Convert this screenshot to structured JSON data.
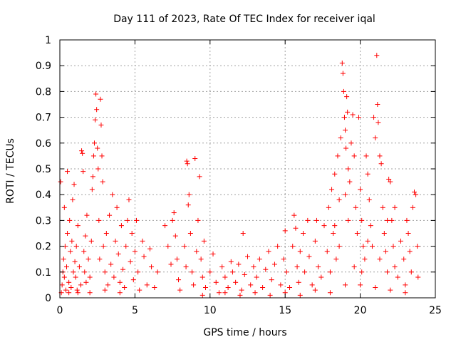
{
  "chart_data": {
    "type": "scatter",
    "title": "Day 111 of 2023, Rate Of TEC Index for receiver iqal",
    "xlabel": "GPS time / hours",
    "ylabel": "ROTI / TECUs",
    "xlim": [
      0,
      25
    ],
    "ylim": [
      0,
      1
    ],
    "xticks": [
      "0",
      "5",
      "10",
      "15",
      "20",
      "25"
    ],
    "yticks": [
      "0",
      "0.1",
      "0.2",
      "0.3",
      "0.4",
      "0.5",
      "0.6",
      "0.7",
      "0.8",
      "0.9",
      "1"
    ],
    "grid": true,
    "marker": "plus",
    "color": "#ff0000",
    "series": [
      {
        "points": [
          [
            0.05,
            0.45
          ],
          [
            0.1,
            0.02
          ],
          [
            0.15,
            0.05
          ],
          [
            0.2,
            0.1
          ],
          [
            0.25,
            0.15
          ],
          [
            0.3,
            0.08
          ],
          [
            0.35,
            0.2
          ],
          [
            0.4,
            0.03
          ],
          [
            0.45,
            0.12
          ],
          [
            0.5,
            0.25
          ],
          [
            0.5,
            0.49
          ],
          [
            0.6,
            0.06
          ],
          [
            0.65,
            0.3
          ],
          [
            0.7,
            0.18
          ],
          [
            0.75,
            0.04
          ],
          [
            0.8,
            0.22
          ],
          [
            0.85,
            0.38
          ],
          [
            0.9,
            0.1
          ],
          [
            0.95,
            0.44
          ],
          [
            1.0,
            0.14
          ],
          [
            1.05,
            0.08
          ],
          [
            1.1,
            0.2
          ],
          [
            1.15,
            0.03
          ],
          [
            1.2,
            0.28
          ],
          [
            1.3,
            0.12
          ],
          [
            1.4,
            0.05
          ],
          [
            1.45,
            0.57
          ],
          [
            1.5,
            0.56
          ],
          [
            1.55,
            0.49
          ],
          [
            1.6,
            0.18
          ],
          [
            1.65,
            0.1
          ],
          [
            1.7,
            0.24
          ],
          [
            1.75,
            0.06
          ],
          [
            1.8,
            0.32
          ],
          [
            1.9,
            0.15
          ],
          [
            2.0,
            0.08
          ],
          [
            2.1,
            0.22
          ],
          [
            2.15,
            0.42
          ],
          [
            2.2,
            0.47
          ],
          [
            2.25,
            0.55
          ],
          [
            2.3,
            0.6
          ],
          [
            2.35,
            0.69
          ],
          [
            2.4,
            0.79
          ],
          [
            2.45,
            0.73
          ],
          [
            2.5,
            0.58
          ],
          [
            2.55,
            0.5
          ],
          [
            2.6,
            0.3
          ],
          [
            2.65,
            0.15
          ],
          [
            2.7,
            0.77
          ],
          [
            2.75,
            0.67
          ],
          [
            2.8,
            0.55
          ],
          [
            2.85,
            0.45
          ],
          [
            2.9,
            0.2
          ],
          [
            3.0,
            0.1
          ],
          [
            3.1,
            0.25
          ],
          [
            3.2,
            0.05
          ],
          [
            3.3,
            0.32
          ],
          [
            3.4,
            0.13
          ],
          [
            3.5,
            0.4
          ],
          [
            3.6,
            0.08
          ],
          [
            3.7,
            0.22
          ],
          [
            3.8,
            0.35
          ],
          [
            3.9,
            0.17
          ],
          [
            4.0,
            0.06
          ],
          [
            4.1,
            0.28
          ],
          [
            4.2,
            0.11
          ],
          [
            4.3,
            0.04
          ],
          [
            4.4,
            0.2
          ],
          [
            4.5,
            0.3
          ],
          [
            4.6,
            0.38
          ],
          [
            4.7,
            0.14
          ],
          [
            4.8,
            0.25
          ],
          [
            4.9,
            0.07
          ],
          [
            5.0,
            0.18
          ],
          [
            5.1,
            0.3
          ],
          [
            5.2,
            0.1
          ],
          [
            5.3,
            0.03
          ],
          [
            5.5,
            0.22
          ],
          [
            5.6,
            0.16
          ],
          [
            5.8,
            0.05
          ],
          [
            6.0,
            0.19
          ],
          [
            6.1,
            0.12
          ],
          [
            6.3,
            0.04
          ],
          [
            6.5,
            0.1
          ],
          [
            7.0,
            0.28
          ],
          [
            7.2,
            0.2
          ],
          [
            7.4,
            0.13
          ],
          [
            7.5,
            0.3
          ],
          [
            7.6,
            0.33
          ],
          [
            7.7,
            0.24
          ],
          [
            7.8,
            0.15
          ],
          [
            7.9,
            0.07
          ],
          [
            8.0,
            0.03
          ],
          [
            8.3,
            0.2
          ],
          [
            8.4,
            0.12
          ],
          [
            8.45,
            0.53
          ],
          [
            8.5,
            0.52
          ],
          [
            8.55,
            0.36
          ],
          [
            8.6,
            0.4
          ],
          [
            8.7,
            0.25
          ],
          [
            8.8,
            0.1
          ],
          [
            8.9,
            0.05
          ],
          [
            9.0,
            0.54
          ],
          [
            9.1,
            0.18
          ],
          [
            9.2,
            0.3
          ],
          [
            9.3,
            0.47
          ],
          [
            9.4,
            0.15
          ],
          [
            9.5,
            0.08
          ],
          [
            9.6,
            0.22
          ],
          [
            9.7,
            0.04
          ],
          [
            10.0,
            0.1
          ],
          [
            10.2,
            0.17
          ],
          [
            10.4,
            0.06
          ],
          [
            10.6,
            0.02
          ],
          [
            10.8,
            0.12
          ],
          [
            11.0,
            0.08
          ],
          [
            11.2,
            0.04
          ],
          [
            11.4,
            0.14
          ],
          [
            11.5,
            0.1
          ],
          [
            11.7,
            0.06
          ],
          [
            11.9,
            0.13
          ],
          [
            12.1,
            0.03
          ],
          [
            12.2,
            0.25
          ],
          [
            12.3,
            0.09
          ],
          [
            12.5,
            0.16
          ],
          [
            12.7,
            0.05
          ],
          [
            12.9,
            0.12
          ],
          [
            13.1,
            0.08
          ],
          [
            13.3,
            0.15
          ],
          [
            13.5,
            0.04
          ],
          [
            13.7,
            0.11
          ],
          [
            13.9,
            0.18
          ],
          [
            14.1,
            0.07
          ],
          [
            14.3,
            0.13
          ],
          [
            14.5,
            0.2
          ],
          [
            14.7,
            0.05
          ],
          [
            14.9,
            0.15
          ],
          [
            15.0,
            0.26
          ],
          [
            15.1,
            0.1
          ],
          [
            15.3,
            0.04
          ],
          [
            15.5,
            0.2
          ],
          [
            15.6,
            0.32
          ],
          [
            15.7,
            0.27
          ],
          [
            15.8,
            0.12
          ],
          [
            15.9,
            0.06
          ],
          [
            16.0,
            0.18
          ],
          [
            16.2,
            0.25
          ],
          [
            16.3,
            0.1
          ],
          [
            16.5,
            0.3
          ],
          [
            16.6,
            0.16
          ],
          [
            16.8,
            0.05
          ],
          [
            17.0,
            0.22
          ],
          [
            17.1,
            0.3
          ],
          [
            17.2,
            0.12
          ],
          [
            17.4,
            0.08
          ],
          [
            17.6,
            0.28
          ],
          [
            17.8,
            0.18
          ],
          [
            17.9,
            0.35
          ],
          [
            18.0,
            0.1
          ],
          [
            18.1,
            0.42
          ],
          [
            18.2,
            0.25
          ],
          [
            18.3,
            0.48
          ],
          [
            18.4,
            0.15
          ],
          [
            18.5,
            0.55
          ],
          [
            18.6,
            0.38
          ],
          [
            18.7,
            0.62
          ],
          [
            18.8,
            0.91
          ],
          [
            18.85,
            0.87
          ],
          [
            18.9,
            0.8
          ],
          [
            18.95,
            0.7
          ],
          [
            19.0,
            0.65
          ],
          [
            19.05,
            0.58
          ],
          [
            19.1,
            0.78
          ],
          [
            19.15,
            0.72
          ],
          [
            19.2,
            0.5
          ],
          [
            19.3,
            0.45
          ],
          [
            19.4,
            0.6
          ],
          [
            19.5,
            0.71
          ],
          [
            19.6,
            0.55
          ],
          [
            19.7,
            0.35
          ],
          [
            19.8,
            0.25
          ],
          [
            19.9,
            0.7
          ],
          [
            20.0,
            0.42
          ],
          [
            20.1,
            0.3
          ],
          [
            20.2,
            0.2
          ],
          [
            20.3,
            0.15
          ],
          [
            20.4,
            0.55
          ],
          [
            20.5,
            0.48
          ],
          [
            20.6,
            0.38
          ],
          [
            20.7,
            0.28
          ],
          [
            20.8,
            0.2
          ],
          [
            20.9,
            0.7
          ],
          [
            21.0,
            0.62
          ],
          [
            21.1,
            0.94
          ],
          [
            21.15,
            0.75
          ],
          [
            21.2,
            0.68
          ],
          [
            21.3,
            0.55
          ],
          [
            21.4,
            0.52
          ],
          [
            21.5,
            0.35
          ],
          [
            21.6,
            0.25
          ],
          [
            21.7,
            0.18
          ],
          [
            21.8,
            0.1
          ],
          [
            21.9,
            0.46
          ],
          [
            22.0,
            0.45
          ],
          [
            22.1,
            0.3
          ],
          [
            22.2,
            0.2
          ],
          [
            22.3,
            0.12
          ],
          [
            22.5,
            0.08
          ],
          [
            22.7,
            0.22
          ],
          [
            22.9,
            0.15
          ],
          [
            23.0,
            0.05
          ],
          [
            23.1,
            0.3
          ],
          [
            23.2,
            0.25
          ],
          [
            23.3,
            0.18
          ],
          [
            23.4,
            0.1
          ],
          [
            23.5,
            0.35
          ],
          [
            23.6,
            0.41
          ],
          [
            23.7,
            0.4
          ],
          [
            23.8,
            0.2
          ],
          [
            23.85,
            0.08
          ],
          [
            0.3,
            0.35
          ],
          [
            0.6,
            0.02
          ],
          [
            1.2,
            0.02
          ],
          [
            2.0,
            0.02
          ],
          [
            3.0,
            0.03
          ],
          [
            4.0,
            0.02
          ],
          [
            9.5,
            0.01
          ],
          [
            11.0,
            0.02
          ],
          [
            12.0,
            0.01
          ],
          [
            13.0,
            0.02
          ],
          [
            14.0,
            0.01
          ],
          [
            15.0,
            0.02
          ],
          [
            16.0,
            0.01
          ],
          [
            17.0,
            0.03
          ],
          [
            18.0,
            0.02
          ],
          [
            19.0,
            0.05
          ],
          [
            20.0,
            0.05
          ],
          [
            21.0,
            0.04
          ],
          [
            22.0,
            0.03
          ],
          [
            23.0,
            0.02
          ],
          [
            18.6,
            0.2
          ],
          [
            19.2,
            0.3
          ],
          [
            19.6,
            0.12
          ],
          [
            20.5,
            0.22
          ],
          [
            21.3,
            0.15
          ],
          [
            20.1,
            0.1
          ],
          [
            19.0,
            0.4
          ],
          [
            18.3,
            0.28
          ],
          [
            22.3,
            0.35
          ],
          [
            21.8,
            0.3
          ]
        ]
      }
    ]
  }
}
